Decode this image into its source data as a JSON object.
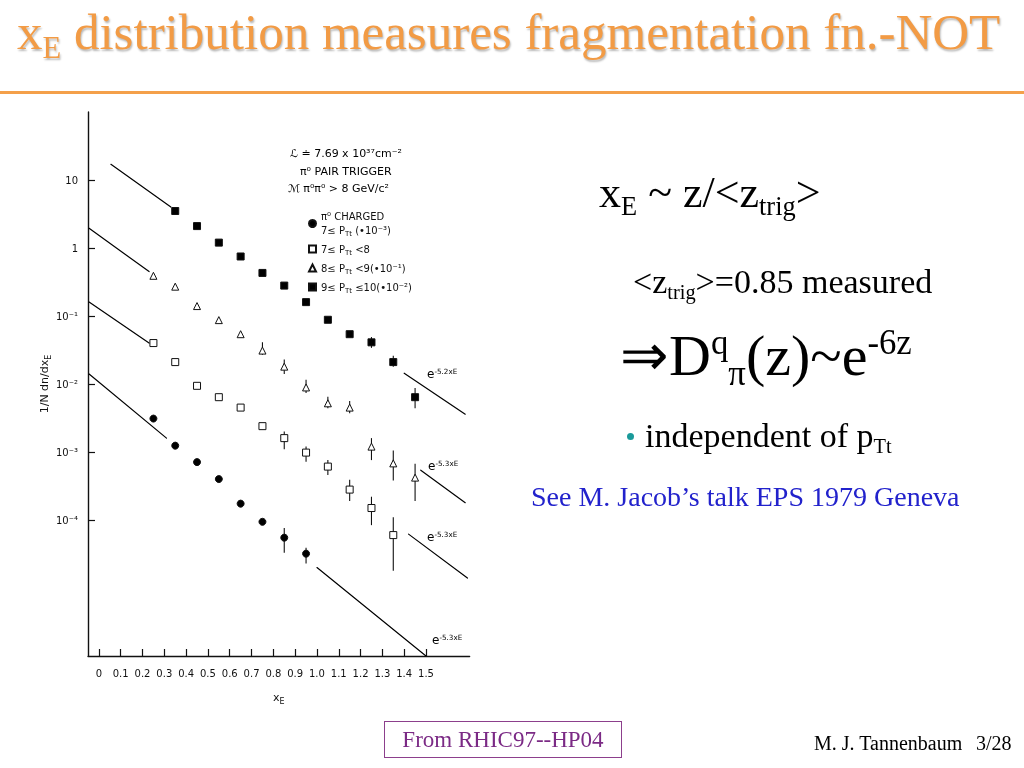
{
  "chart_data": {
    "type": "scatter",
    "title": "x$_{E}$ distribution measures fragmentation fn.-NOT",
    "xlabel": "x$_{E}$",
    "ylabel": "1/N dn/dx$_{E}$",
    "xlim": [
      -0.05,
      1.7
    ],
    "xticks": [
      0,
      0.1,
      0.2,
      0.3,
      0.4,
      0.5,
      0.6,
      0.7,
      0.8,
      0.9,
      {
        "value": 1,
        "label": "1.0"
      },
      1.1,
      1.2,
      1.3,
      1.4,
      1.5
    ],
    "ylim": [
      1e-06,
      100
    ],
    "yticks": [
      {
        "value": 0.0001,
        "label": "10⁻⁴"
      },
      {
        "value": 0.001,
        "label": "10⁻³"
      },
      {
        "value": 0.01,
        "label": "10⁻²"
      },
      {
        "value": 0.1,
        "label": "10⁻¹"
      },
      1,
      10
    ],
    "log": "y",
    "legend": "top right",
    "series": [
      {
        "name": "π⁰ CHARGED 7≤ P$_{Tt}$ (•10⁻³)",
        "color": "#000000",
        "marker": "circle",
        "x": [
          0.25,
          0.35,
          0.45,
          0.55,
          0.65,
          0.75,
          0.85,
          0.95
        ],
        "values": [
          0.0031,
          0.00124,
          0.00071,
          0.0004,
          0.000174,
          9.4e-05,
          5.5e-05,
          3.2e-05
        ],
        "errors": [
          null,
          null,
          null,
          null,
          null,
          null,
          [
            3.3e-05,
            7.6e-05
          ],
          [
            2.3e-05,
            3.9e-05
          ]
        ]
      },
      {
        "name": "7≤ P$_{Tt}$ <8",
        "color": "#ffffff",
        "marker": "square",
        "x": [
          0.25,
          0.35,
          0.45,
          0.55,
          0.65,
          0.75,
          0.85,
          0.95,
          1.05,
          1.15,
          1.25,
          1.35
        ],
        "values": [
          0.04,
          0.021,
          0.0094,
          0.0064,
          0.0045,
          0.0024,
          0.0016,
          0.00098,
          0.00061,
          0.00028,
          0.00015,
          6e-05
        ],
        "errors": [
          null,
          null,
          null,
          null,
          null,
          null,
          [
            0.0011,
            0.002
          ],
          [
            0.00072,
            0.0012
          ],
          [
            0.00046,
            0.00076
          ],
          [
            0.00019,
            0.00039
          ],
          [
            8.4e-05,
            0.00022
          ],
          [
            1.8e-05,
            0.00011
          ]
        ]
      },
      {
        "name": "8≤ P$_{Tt}$ <9(•10⁻¹)",
        "color": "#ffffff",
        "marker": "triangle",
        "x": [
          0.25,
          0.35,
          0.45,
          0.55,
          0.65,
          0.75,
          0.85,
          0.95,
          1.05,
          1.15,
          1.25,
          1.35,
          1.45
        ],
        "values": [
          0.39,
          0.27,
          0.14,
          0.087,
          0.054,
          0.031,
          0.018,
          0.0089,
          0.0052,
          0.0045,
          0.0012,
          0.00068,
          0.00042
        ],
        "errors": [
          null,
          null,
          null,
          null,
          null,
          [
            0.027,
            0.041
          ],
          [
            0.014,
            0.023
          ],
          [
            0.0074,
            0.0115
          ],
          [
            0.0044,
            0.0065
          ],
          [
            0.0037,
            0.0056
          ],
          [
            0.00076,
            0.0016
          ],
          [
            0.00038,
            0.00105
          ],
          [
            0.00019,
            0.00067
          ]
        ]
      },
      {
        "name": "9≤ P$_{Tt}$ ≤10(•10⁻²)",
        "color": "#000000",
        "marker": "square",
        "x": [
          0.35,
          0.45,
          0.55,
          0.65,
          0.75,
          0.85,
          0.95,
          1.05,
          1.15,
          1.25,
          1.35,
          1.45
        ],
        "values": [
          3.5,
          2.1,
          1.2,
          0.75,
          0.43,
          0.28,
          0.16,
          0.088,
          0.054,
          0.041,
          0.021,
          0.0064
        ],
        "errors": [
          null,
          null,
          null,
          null,
          null,
          null,
          null,
          null,
          null,
          [
            0.034,
            0.049
          ],
          [
            0.018,
            0.026
          ],
          [
            0.0044,
            0.0087
          ]
        ]
      },
      {
        "type": "line",
        "color": "#000000",
        "marker": "none",
        "x": [
          0.055,
          0.33
        ],
        "values": [
          17,
          4.0
        ]
      },
      {
        "type": "line",
        "color": "#000000",
        "marker": "none",
        "x": [
          1.4,
          1.68
        ],
        "values": [
          0.0144,
          0.0036
        ]
      },
      {
        "type": "line",
        "color": "#000000",
        "marker": "none",
        "x": [
          -0.045,
          0.23
        ],
        "values": [
          1.95,
          0.45
        ]
      },
      {
        "type": "line",
        "color": "#000000",
        "marker": "none",
        "x": [
          1.476,
          1.68
        ],
        "values": [
          0.00054,
          0.00018
        ]
      },
      {
        "type": "line",
        "color": "#000000",
        "marker": "none",
        "x": [
          -0.045,
          0.23
        ],
        "values": [
          0.16,
          0.04
        ]
      },
      {
        "type": "line",
        "color": "#000000",
        "marker": "none",
        "x": [
          1.42,
          1.69
        ],
        "values": [
          6.2e-05,
          1.4e-05
        ]
      },
      {
        "type": "line",
        "color": "#000000",
        "marker": "none",
        "x": [
          -0.045,
          0.31
        ],
        "values": [
          0.014,
          0.0016
        ]
      },
      {
        "type": "line",
        "color": "#000000",
        "marker": "none",
        "x": [
          1.0,
          1.5
        ],
        "values": [
          2e-05,
          1e-06
        ]
      }
    ],
    "annotations": [
      "ℒ ≐ 7.69 x 10³⁷cm⁻²",
      "π⁰ PAIR TRIGGER",
      "ℳ π⁰π⁰ > 8 GeV/c²",
      "x$_{E}$ ~ z/<z$_{trig}$>",
      "<z$_{trig}$>=0.85 measured",
      "⇒D$^{q}$$_{π}$(z)~e$^{-6z}$",
      "independent of p$_{Tt}$",
      "See M. Jacob’s talk EPS 1979 Geneva",
      "From RHIC97--HP04",
      "M. J. Tannenbaum",
      "3/28",
      "e$^{-5.2xE}$",
      "e$^{-5.3xE}$",
      "e$^{-5.3xE}$",
      "e$^{-5.3xE}$"
    ]
  }
}
